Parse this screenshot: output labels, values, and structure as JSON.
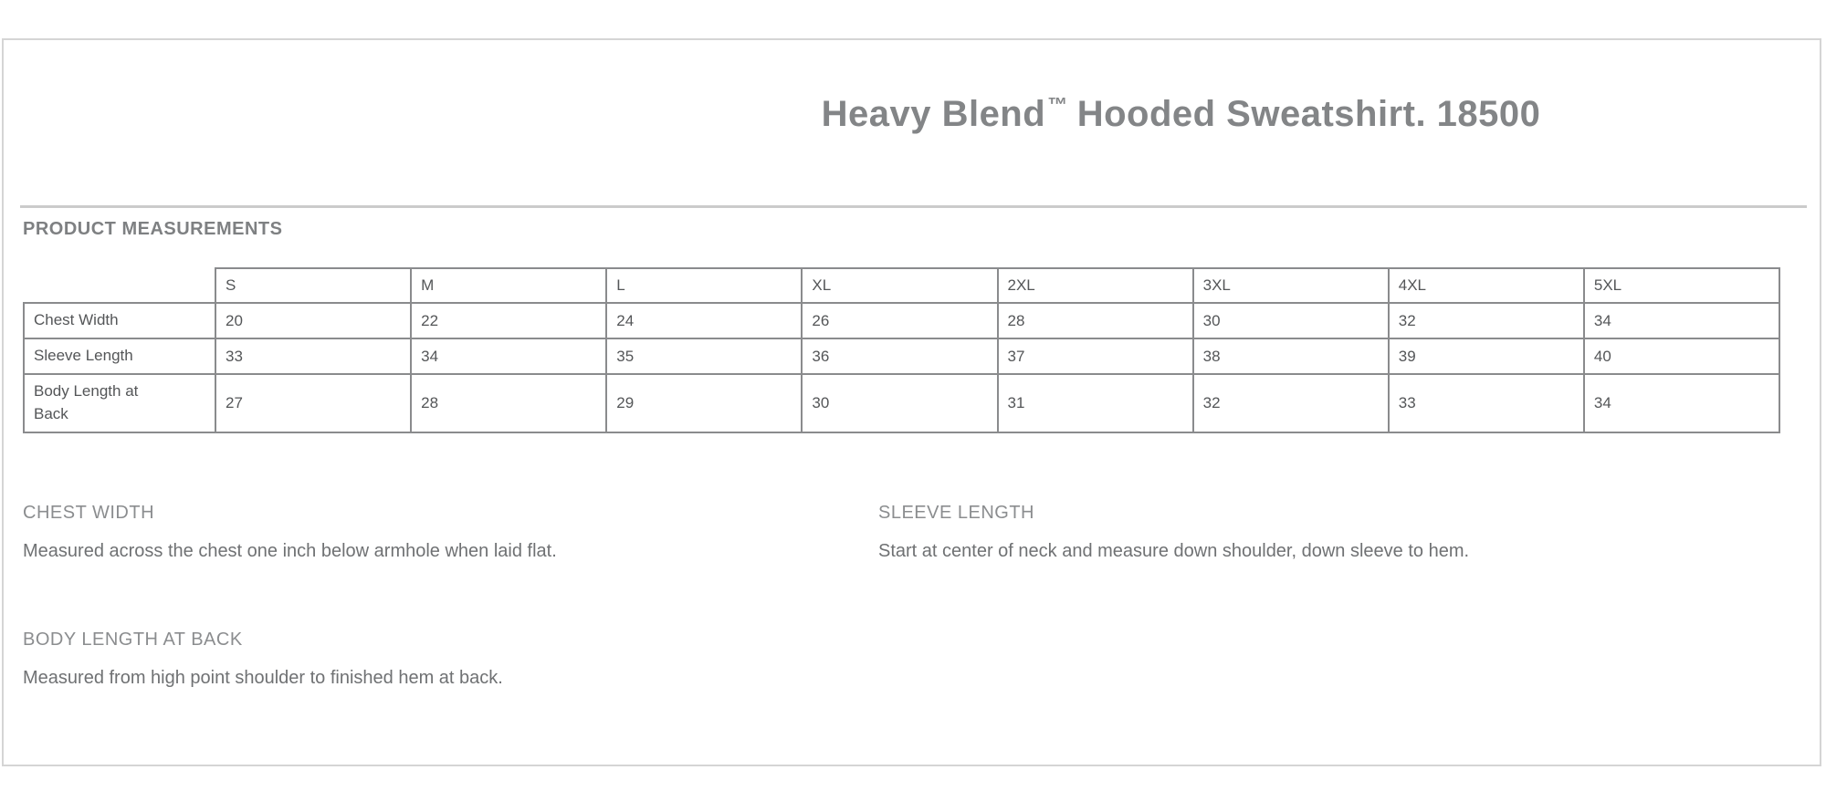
{
  "title": {
    "main1": "Heavy Blend",
    "tm": "™",
    "main2": "Hooded Sweatshirt. 18500"
  },
  "section_heading": "PRODUCT MEASUREMENTS",
  "table": {
    "size_headers": [
      "S",
      "M",
      "L",
      "XL",
      "2XL",
      "3XL",
      "4XL",
      "5XL"
    ],
    "rows": [
      {
        "label": "Chest Width",
        "values": [
          "20",
          "22",
          "24",
          "26",
          "28",
          "30",
          "32",
          "34"
        ]
      },
      {
        "label": "Sleeve Length",
        "values": [
          "33",
          "34",
          "35",
          "36",
          "37",
          "38",
          "39",
          "40"
        ]
      },
      {
        "label": "Body Length at Back",
        "values": [
          "27",
          "28",
          "29",
          "30",
          "31",
          "32",
          "33",
          "34"
        ]
      }
    ]
  },
  "definitions": [
    {
      "heading": "CHEST WIDTH",
      "text": "Measured across the chest one inch below armhole when laid flat."
    },
    {
      "heading": "SLEEVE LENGTH",
      "text": "Start at center of neck and measure down shoulder, down sleeve to hem."
    },
    {
      "heading": "BODY LENGTH AT BACK",
      "text": "Measured from high point shoulder to finished hem at back."
    }
  ],
  "colors": {
    "page_border": "#d5d5d5",
    "rule": "#cbcbcb",
    "title_text": "#838587",
    "section_heading_text": "#7e8082",
    "table_border": "#8a8b8d",
    "table_text": "#545658",
    "definition_heading_text": "#8b8d8f",
    "definition_body_text": "#6f7173"
  }
}
